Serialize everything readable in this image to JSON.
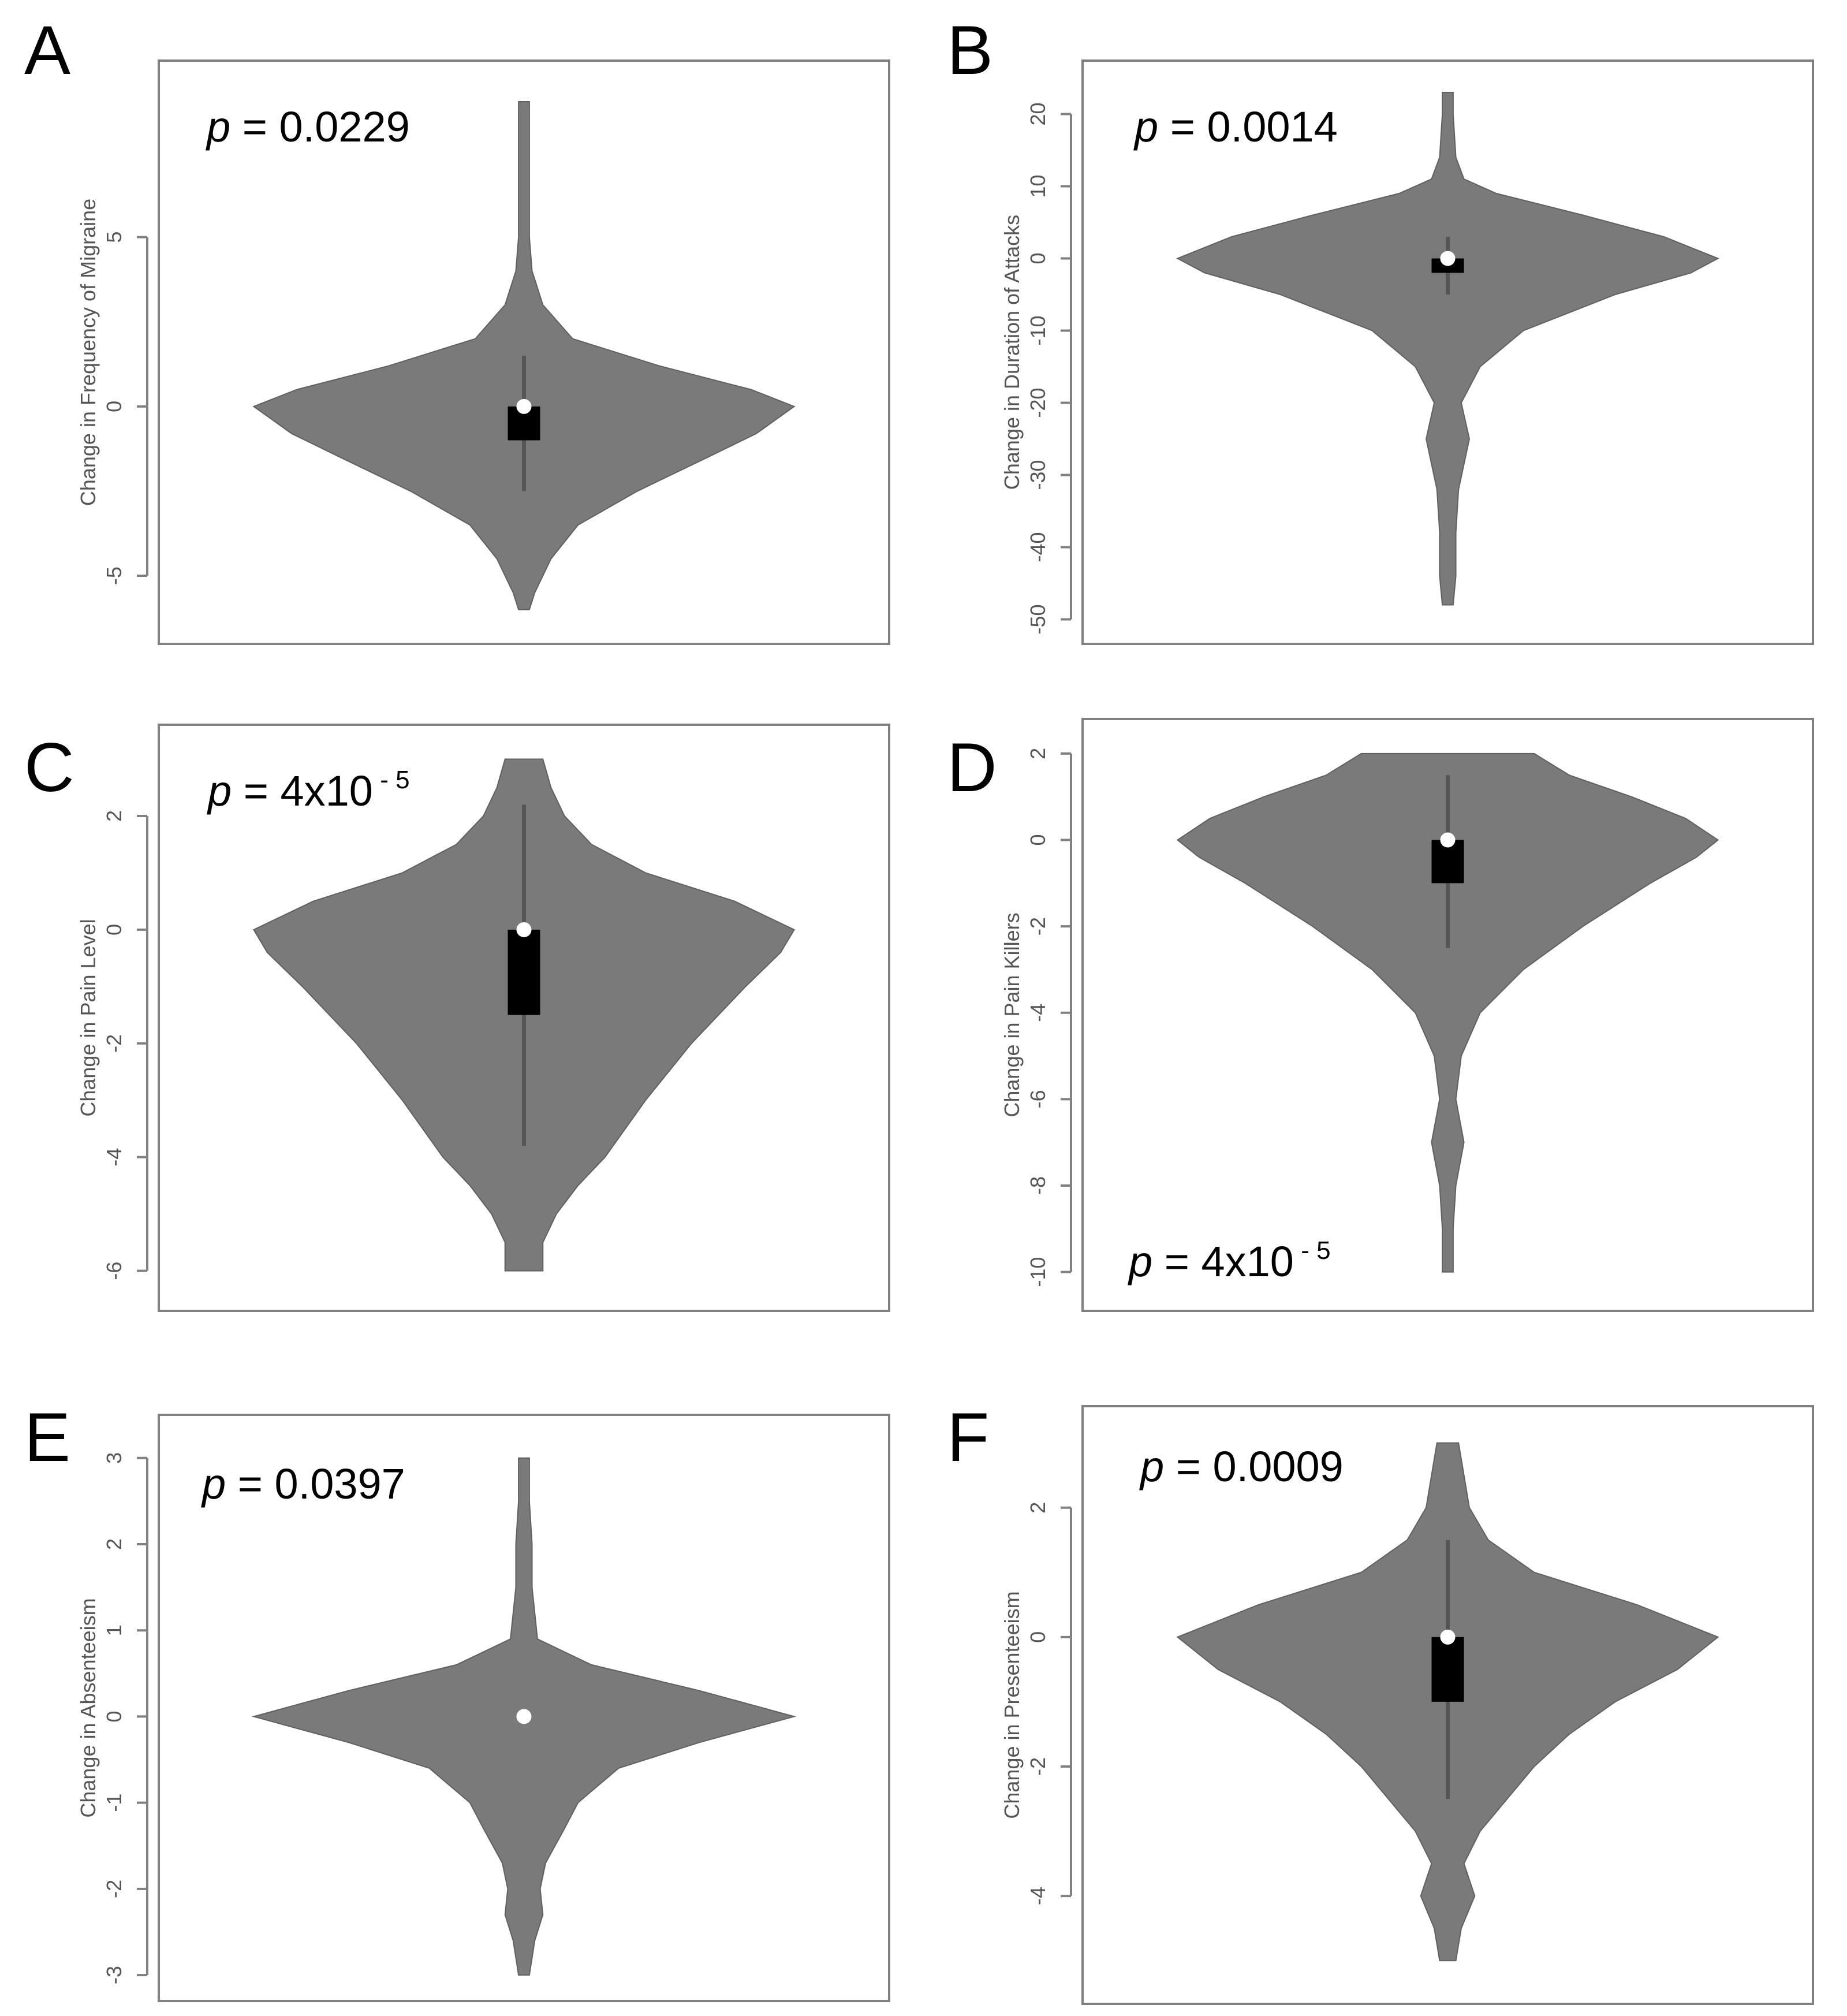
{
  "figure": {
    "panels": [
      {
        "letter": "A",
        "p_prefix": "p",
        "p_text": " = 0.0229",
        "p_exponent": "",
        "p_placement": "top-left",
        "chart_type": "violin",
        "ylabel": "Change in Frequency of Migraine",
        "ylim": [
          -6.5,
          9.7
        ],
        "ticks": [
          -5,
          0,
          5
        ],
        "tick_labels": [
          "-5",
          "0",
          "5"
        ],
        "violin": {
          "profile": [
            [
              -6,
              0.02
            ],
            [
              -5.5,
              0.04
            ],
            [
              -4.5,
              0.1
            ],
            [
              -3.5,
              0.2
            ],
            [
              -2.5,
              0.42
            ],
            [
              -1.5,
              0.68
            ],
            [
              -0.8,
              0.86
            ],
            [
              0,
              1.0
            ],
            [
              0.5,
              0.84
            ],
            [
              1.2,
              0.5
            ],
            [
              2,
              0.18
            ],
            [
              3,
              0.07
            ],
            [
              4,
              0.03
            ],
            [
              5,
              0.02
            ],
            [
              7,
              0.02
            ],
            [
              9,
              0.02
            ]
          ]
        },
        "box": {
          "whisker_low": -2.5,
          "q1": -1,
          "median": 0,
          "q3": 0,
          "whisker_high": 1.5
        }
      },
      {
        "letter": "B",
        "p_prefix": "p",
        "p_text": " = 0.0014",
        "p_exponent": "",
        "p_placement": "top-left",
        "chart_type": "violin",
        "ylabel": "Change in Duration of Attacks",
        "ylim": [
          -51,
          25
        ],
        "ticks": [
          -50,
          -40,
          -30,
          -20,
          -10,
          0,
          10,
          20
        ],
        "tick_labels": [
          "-50",
          "-40",
          "-30",
          "-20",
          "-10",
          "0",
          "10",
          "20"
        ],
        "violin": {
          "profile": [
            [
              -48,
              0.02
            ],
            [
              -44,
              0.03
            ],
            [
              -38,
              0.03
            ],
            [
              -32,
              0.04
            ],
            [
              -25,
              0.08
            ],
            [
              -20,
              0.05
            ],
            [
              -15,
              0.12
            ],
            [
              -10,
              0.28
            ],
            [
              -5,
              0.62
            ],
            [
              -2,
              0.9
            ],
            [
              0,
              1.0
            ],
            [
              3,
              0.8
            ],
            [
              6,
              0.5
            ],
            [
              9,
              0.18
            ],
            [
              11,
              0.06
            ],
            [
              14,
              0.03
            ],
            [
              20,
              0.02
            ],
            [
              23,
              0.02
            ]
          ]
        },
        "box": {
          "whisker_low": -5,
          "q1": -2,
          "median": 0,
          "q3": 0,
          "whisker_high": 3
        }
      },
      {
        "letter": "C",
        "p_prefix": "p",
        "p_text": " = 4x10",
        "p_exponent": " - 5",
        "p_placement": "top-left",
        "chart_type": "violin",
        "ylabel": "Change in Pain Level",
        "ylim": [
          -6.4,
          3.3
        ],
        "ticks": [
          -6,
          -4,
          -2,
          0,
          2
        ],
        "tick_labels": [
          "-6",
          "-4",
          "-2",
          "0",
          "2"
        ],
        "violin": {
          "profile": [
            [
              -6,
              0.07
            ],
            [
              -5.5,
              0.07
            ],
            [
              -5,
              0.12
            ],
            [
              -4.5,
              0.2
            ],
            [
              -4,
              0.3
            ],
            [
              -3,
              0.45
            ],
            [
              -2,
              0.62
            ],
            [
              -1,
              0.82
            ],
            [
              -0.4,
              0.95
            ],
            [
              0,
              1.0
            ],
            [
              0.5,
              0.78
            ],
            [
              1,
              0.45
            ],
            [
              1.5,
              0.25
            ],
            [
              2,
              0.15
            ],
            [
              2.5,
              0.1
            ],
            [
              3,
              0.07
            ]
          ]
        },
        "box": {
          "whisker_low": -3.8,
          "q1": -1.5,
          "median": 0,
          "q3": 0,
          "whisker_high": 2.2
        }
      },
      {
        "letter": "D",
        "p_prefix": "p",
        "p_text": " = 4x10",
        "p_exponent": " - 5",
        "p_placement": "bottom-left",
        "chart_type": "violin",
        "ylabel": "Change in Pain Killers",
        "ylim": [
          -10.5,
          2.4
        ],
        "ticks": [
          -10,
          -8,
          -6,
          -4,
          -2,
          0,
          2
        ],
        "tick_labels": [
          "-10",
          "-8",
          "-6",
          "-4",
          "-2",
          "0",
          "2"
        ],
        "violin": {
          "profile": [
            [
              -10,
              0.02
            ],
            [
              -9,
              0.02
            ],
            [
              -8,
              0.03
            ],
            [
              -7,
              0.06
            ],
            [
              -6,
              0.03
            ],
            [
              -5,
              0.05
            ],
            [
              -4,
              0.12
            ],
            [
              -3,
              0.28
            ],
            [
              -2,
              0.5
            ],
            [
              -1,
              0.75
            ],
            [
              -0.4,
              0.92
            ],
            [
              0,
              1.0
            ],
            [
              0.5,
              0.88
            ],
            [
              1,
              0.68
            ],
            [
              1.5,
              0.45
            ],
            [
              2,
              0.32
            ]
          ]
        },
        "box": {
          "whisker_low": -2.5,
          "q1": -1,
          "median": 0,
          "q3": 0,
          "whisker_high": 1.5
        }
      },
      {
        "letter": "E",
        "p_prefix": "p",
        "p_text": " = 0.0397",
        "p_exponent": "",
        "p_placement": "top-left",
        "chart_type": "violin",
        "ylabel": "Change in Absenteeism",
        "ylim": [
          -3.1,
          3.3
        ],
        "ticks": [
          -3,
          -2,
          -1,
          0,
          1,
          2,
          3
        ],
        "tick_labels": [
          "-3",
          "-2",
          "-1",
          "0",
          "1",
          "2",
          "3"
        ],
        "violin": {
          "profile": [
            [
              -3,
              0.02
            ],
            [
              -2.6,
              0.04
            ],
            [
              -2.3,
              0.07
            ],
            [
              -2,
              0.06
            ],
            [
              -1.7,
              0.08
            ],
            [
              -1.3,
              0.15
            ],
            [
              -1,
              0.2
            ],
            [
              -0.6,
              0.35
            ],
            [
              -0.3,
              0.65
            ],
            [
              0,
              1.0
            ],
            [
              0.3,
              0.65
            ],
            [
              0.6,
              0.25
            ],
            [
              0.9,
              0.05
            ],
            [
              1.5,
              0.03
            ],
            [
              2,
              0.03
            ],
            [
              2.5,
              0.02
            ],
            [
              3,
              0.02
            ]
          ]
        },
        "box": {
          "whisker_low": 0,
          "q1": 0,
          "median": 0,
          "q3": 0,
          "whisker_high": 0
        }
      },
      {
        "letter": "F",
        "p_prefix": "p",
        "p_text": " = 0.0009",
        "p_exponent": "",
        "p_placement": "top-left",
        "chart_type": "violin",
        "ylabel": "Change in Presenteeism",
        "ylim": [
          -5.4,
          3.3
        ],
        "ticks": [
          -4,
          -2,
          0,
          2
        ],
        "tick_labels": [
          "-4",
          "-2",
          "0",
          "2"
        ],
        "violin": {
          "profile": [
            [
              -5,
              0.03
            ],
            [
              -4.5,
              0.05
            ],
            [
              -4,
              0.1
            ],
            [
              -3.5,
              0.06
            ],
            [
              -3,
              0.12
            ],
            [
              -2.5,
              0.22
            ],
            [
              -2,
              0.32
            ],
            [
              -1.5,
              0.45
            ],
            [
              -1,
              0.62
            ],
            [
              -0.5,
              0.85
            ],
            [
              0,
              1.0
            ],
            [
              0.5,
              0.7
            ],
            [
              1,
              0.32
            ],
            [
              1.5,
              0.15
            ],
            [
              2,
              0.08
            ],
            [
              2.5,
              0.06
            ],
            [
              3,
              0.04
            ]
          ]
        },
        "box": {
          "whisker_low": -2.5,
          "q1": -1,
          "median": 0,
          "q3": 0,
          "whisker_high": 1.5
        }
      }
    ]
  },
  "chart_data": [
    {
      "type": "violin",
      "panel": "A",
      "ylabel": "Change in Frequency of Migraine",
      "ylim": [
        -6.5,
        9.7
      ],
      "ticks": [
        -5,
        0,
        5
      ],
      "min": -6,
      "max": 9,
      "q1": -1,
      "median": 0,
      "q3": 0,
      "whisker_low": -2.5,
      "whisker_high": 1.5,
      "annotation": "p = 0.0229"
    },
    {
      "type": "violin",
      "panel": "B",
      "ylabel": "Change in Duration of Attacks",
      "ylim": [
        -51,
        25
      ],
      "ticks": [
        -50,
        -40,
        -30,
        -20,
        -10,
        0,
        10,
        20
      ],
      "min": -48,
      "max": 23,
      "q1": -2,
      "median": 0,
      "q3": 0,
      "whisker_low": -5,
      "whisker_high": 3,
      "annotation": "p = 0.0014"
    },
    {
      "type": "violin",
      "panel": "C",
      "ylabel": "Change in Pain Level",
      "ylim": [
        -6.4,
        3.3
      ],
      "ticks": [
        -6,
        -4,
        -2,
        0,
        2
      ],
      "min": -6,
      "max": 3,
      "q1": -1.5,
      "median": 0,
      "q3": 0,
      "whisker_low": -3.8,
      "whisker_high": 2.2,
      "annotation": "p = 4x10 - 5"
    },
    {
      "type": "violin",
      "panel": "D",
      "ylabel": "Change in Pain Killers",
      "ylim": [
        -10.5,
        2.4
      ],
      "ticks": [
        -10,
        -8,
        -6,
        -4,
        -2,
        0,
        2
      ],
      "min": -10,
      "max": 2,
      "q1": -1,
      "median": 0,
      "q3": 0,
      "whisker_low": -2.5,
      "whisker_high": 1.5,
      "annotation": "p = 4x10 - 5"
    },
    {
      "type": "violin",
      "panel": "E",
      "ylabel": "Change in Absenteeism",
      "ylim": [
        -3.1,
        3.3
      ],
      "ticks": [
        -3,
        -2,
        -1,
        0,
        1,
        2,
        3
      ],
      "min": -3,
      "max": 3,
      "q1": 0,
      "median": 0,
      "q3": 0,
      "whisker_low": 0,
      "whisker_high": 0,
      "annotation": "p = 0.0397"
    },
    {
      "type": "violin",
      "panel": "F",
      "ylabel": "Change in Presenteeism",
      "ylim": [
        -5.4,
        3.3
      ],
      "ticks": [
        -4,
        -2,
        0,
        2
      ],
      "min": -5,
      "max": 3,
      "q1": -1,
      "median": 0,
      "q3": 0,
      "whisker_low": -2.5,
      "whisker_high": 1.5,
      "annotation": "p = 0.0009"
    }
  ]
}
